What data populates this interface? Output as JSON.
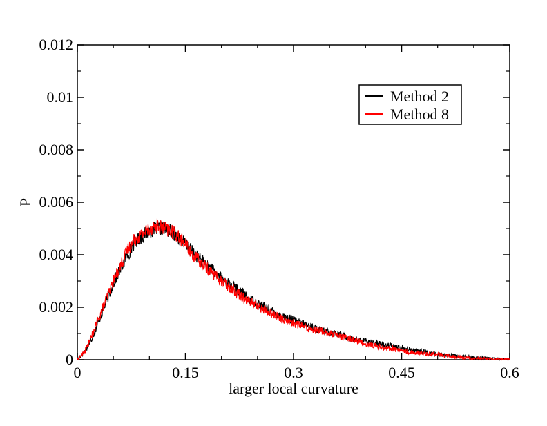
{
  "chart_data": {
    "type": "line",
    "title": "",
    "xlabel": "larger local curvature",
    "ylabel": "P",
    "xlim": [
      0,
      0.6
    ],
    "ylim": [
      0,
      0.012
    ],
    "x_ticks": [
      0,
      0.15,
      0.3,
      0.45,
      0.6
    ],
    "x_tick_labels": [
      "0",
      "0.15",
      "0.3",
      "0.45",
      "0.6"
    ],
    "y_ticks": [
      0,
      0.002,
      0.004,
      0.006,
      0.008,
      0.01,
      0.012
    ],
    "y_tick_labels": [
      "0",
      "0.002",
      "0.004",
      "0.006",
      "0.008",
      "0.01",
      "0.012"
    ],
    "grid": false,
    "legend_position": "top-right",
    "series": [
      {
        "name": "Method 2",
        "color": "#000000",
        "x": [
          0,
          0.01,
          0.02,
          0.03,
          0.04,
          0.05,
          0.06,
          0.07,
          0.08,
          0.09,
          0.1,
          0.11,
          0.12,
          0.13,
          0.14,
          0.15,
          0.16,
          0.18,
          0.2,
          0.22,
          0.24,
          0.26,
          0.28,
          0.3,
          0.32,
          0.34,
          0.36,
          0.38,
          0.4,
          0.42,
          0.44,
          0.46,
          0.48,
          0.5,
          0.52,
          0.54,
          0.56,
          0.58,
          0.6
        ],
        "values": [
          0.0,
          0.0003,
          0.0008,
          0.0015,
          0.0022,
          0.0029,
          0.0035,
          0.004,
          0.0045,
          0.0047,
          0.0049,
          0.005,
          0.005,
          0.0049,
          0.0047,
          0.0044,
          0.0041,
          0.0036,
          0.0031,
          0.0027,
          0.0023,
          0.002,
          0.0017,
          0.0015,
          0.0013,
          0.0011,
          0.001,
          0.0008,
          0.0007,
          0.0006,
          0.0005,
          0.0004,
          0.0003,
          0.0002,
          0.00015,
          0.0001,
          7e-05,
          3e-05,
          1e-05
        ]
      },
      {
        "name": "Method 8",
        "color": "#ff0000",
        "x": [
          0,
          0.01,
          0.02,
          0.03,
          0.04,
          0.05,
          0.06,
          0.07,
          0.08,
          0.09,
          0.1,
          0.11,
          0.12,
          0.13,
          0.14,
          0.15,
          0.16,
          0.18,
          0.2,
          0.22,
          0.24,
          0.26,
          0.28,
          0.3,
          0.32,
          0.34,
          0.36,
          0.38,
          0.4,
          0.42,
          0.44,
          0.46,
          0.48,
          0.5,
          0.52,
          0.54,
          0.56,
          0.58,
          0.6
        ],
        "values": [
          0.0,
          0.0003,
          0.0009,
          0.0016,
          0.0023,
          0.003,
          0.0036,
          0.0042,
          0.0046,
          0.0048,
          0.005,
          0.0051,
          0.005,
          0.0049,
          0.0047,
          0.0044,
          0.004,
          0.0035,
          0.003,
          0.0026,
          0.0022,
          0.0019,
          0.0016,
          0.0014,
          0.0012,
          0.0011,
          0.0009,
          0.0008,
          0.0006,
          0.0005,
          0.0004,
          0.0003,
          0.00025,
          0.0002,
          0.00012,
          8e-05,
          5e-05,
          2e-05,
          1e-05
        ]
      }
    ]
  }
}
